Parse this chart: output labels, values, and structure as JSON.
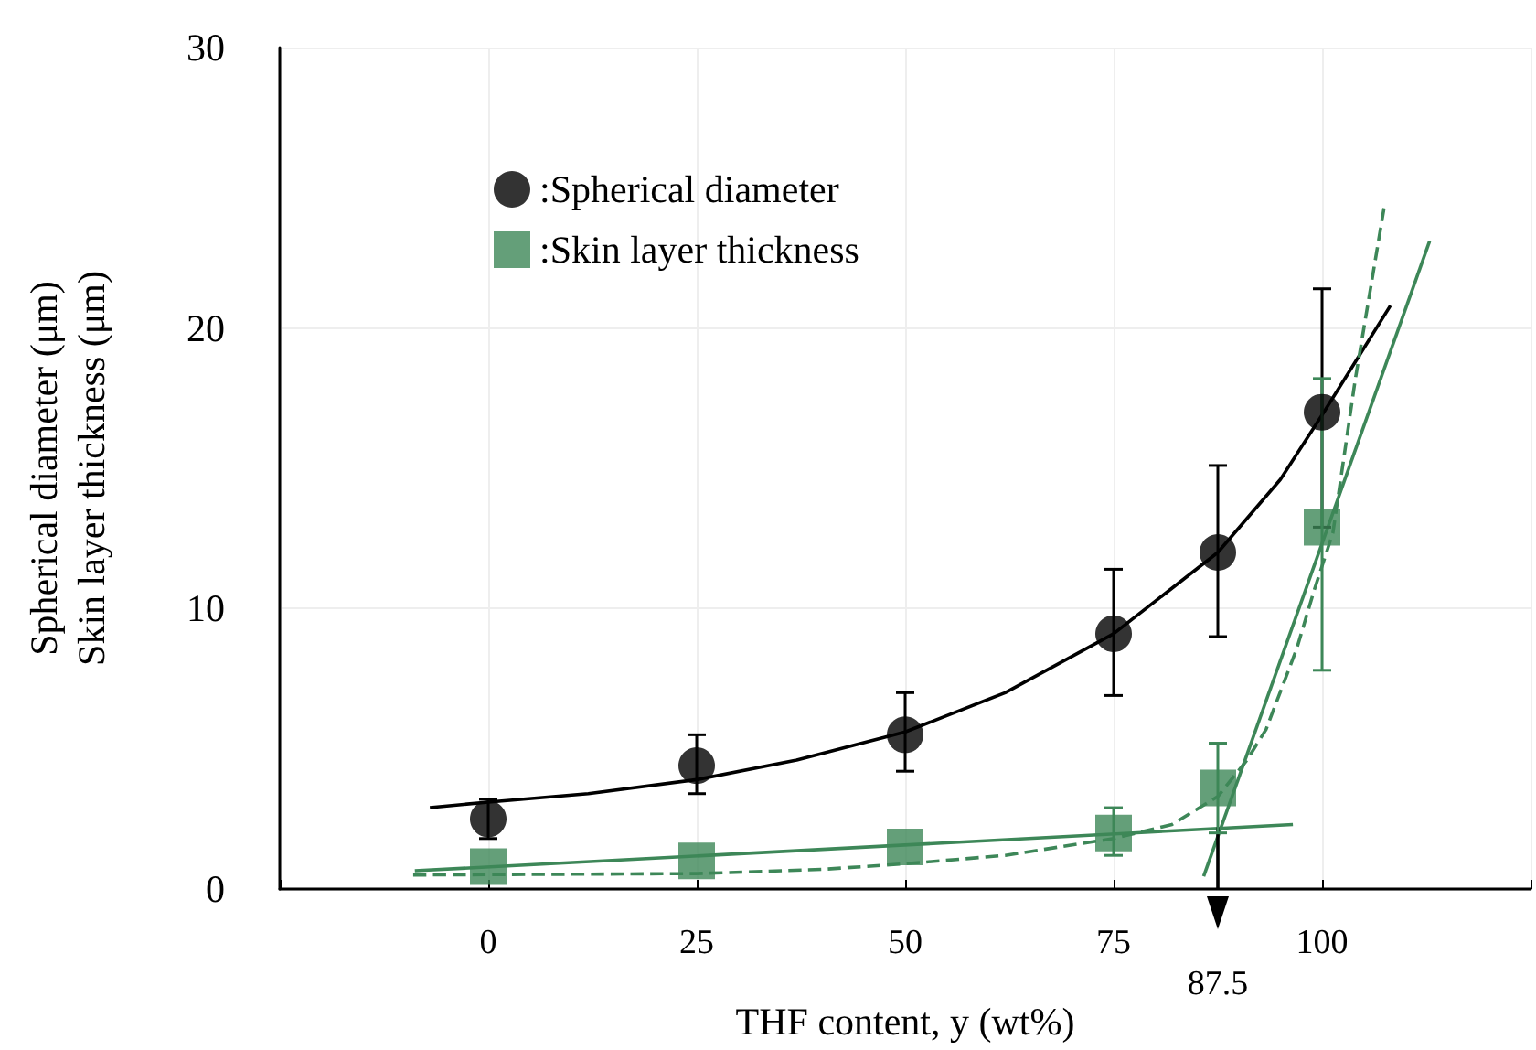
{
  "chart_data": {
    "type": "scatter",
    "xlabel": "THF content, y (wt%)",
    "ylabel": "Spherical diameter (μm)\nSkin layer thickness (μm)",
    "xlim": [
      -25,
      125
    ],
    "xticks": [
      {
        "value": -25,
        "label": null
      },
      0,
      25,
      50,
      75,
      100,
      {
        "value": 125,
        "label": null
      }
    ],
    "ylim": [
      0,
      30
    ],
    "yticks": [
      0,
      10,
      20,
      30
    ],
    "grid": true,
    "legend": "top left",
    "series": [
      {
        "name": ":Spherical diameter",
        "marker": "circle",
        "color": "#000000",
        "x": [
          0,
          25,
          50,
          75,
          87.5,
          100
        ],
        "values": [
          2.5,
          4.4,
          5.5,
          9.1,
          12.0,
          17.0
        ],
        "errors": [
          [
            1.8,
            3.2
          ],
          [
            3.4,
            5.5
          ],
          [
            4.2,
            7.0
          ],
          [
            6.9,
            11.4
          ],
          [
            9.0,
            15.1
          ],
          [
            12.9,
            21.4
          ]
        ]
      },
      {
        "name": ":Skin layer thickness",
        "marker": "square",
        "color": "#3d8758",
        "x": [
          0,
          25,
          50,
          75,
          87.5,
          100
        ],
        "values": [
          0.8,
          1.0,
          1.5,
          2.0,
          3.6,
          12.9
        ],
        "errors": [
          null,
          null,
          null,
          [
            1.2,
            2.9
          ],
          [
            2.0,
            5.2
          ],
          [
            7.8,
            18.2
          ]
        ]
      },
      {
        "type": "line",
        "color": "#000000",
        "line_style": "solid",
        "x": [
          -7,
          0,
          12,
          25,
          37,
          50,
          62,
          75,
          87.5,
          95,
          100,
          104,
          108.2
        ],
        "values": [
          2.9,
          3.1,
          3.4,
          3.9,
          4.6,
          5.6,
          7.0,
          9.1,
          12.0,
          14.6,
          16.9,
          18.8,
          20.8
        ]
      },
      {
        "type": "line",
        "color": "#3d8758",
        "line_style": "solid",
        "x": [
          -8.8,
          96.5
        ],
        "values": [
          0.65,
          2.3
        ]
      },
      {
        "type": "line",
        "color": "#3d8758",
        "line_style": "solid",
        "x": [
          85.8,
          112.9
        ],
        "values": [
          0.45,
          23.1
        ]
      },
      {
        "type": "line",
        "color": "#3d8758",
        "line_style": "dashed",
        "x": [
          -9,
          25,
          40,
          50,
          62,
          75,
          82,
          87.5,
          91,
          93.3,
          97,
          99,
          101.3,
          104,
          107.5
        ],
        "values": [
          0.5,
          0.55,
          0.7,
          0.9,
          1.2,
          1.8,
          2.3,
          3.3,
          4.6,
          5.7,
          8.6,
          10.6,
          12.7,
          18.2,
          24.4
        ]
      },
      {
        "type": "line",
        "color": "#000000",
        "line_style": "solid",
        "x": [
          87.5,
          87.5
        ],
        "values": [
          2.2,
          0
        ]
      }
    ],
    "annotations": [
      {
        "text": "87.5",
        "x": 87.5,
        "y": 0
      }
    ]
  }
}
